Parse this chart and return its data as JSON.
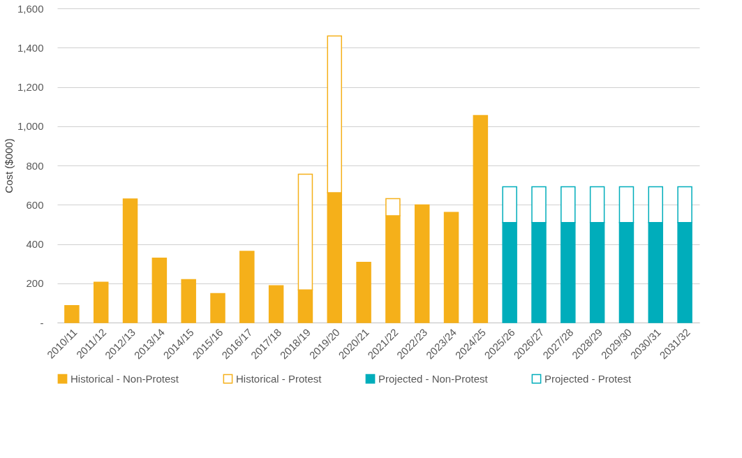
{
  "chart_data": {
    "type": "bar",
    "stacked": true,
    "ylabel": "Cost ($000)",
    "categories": [
      "2010/11",
      "2011/12",
      "2012/13",
      "2013/14",
      "2014/15",
      "2015/16",
      "2016/17",
      "2017/18",
      "2018/19",
      "2019/20",
      "2020/21",
      "2021/22",
      "2022/23",
      "2023/24",
      "2024/25",
      "2025/26",
      "2026/27",
      "2027/28",
      "2028/29",
      "2029/30",
      "2030/31",
      "2031/32"
    ],
    "series": [
      {
        "name": "Historical - Non-Protest",
        "color": "#f5b01a",
        "values": [
          86,
          205,
          629,
          328,
          219,
          148,
          363,
          188,
          166,
          661,
          307,
          544,
          599,
          561,
          1054,
          null,
          null,
          null,
          null,
          null,
          null,
          null
        ]
      },
      {
        "name": "Historical - Protest",
        "color": "#f5b01a",
        "values": [
          null,
          null,
          null,
          null,
          null,
          null,
          null,
          null,
          590,
          799,
          null,
          87,
          null,
          null,
          null,
          null,
          null,
          null,
          null,
          null,
          null,
          null
        ]
      },
      {
        "name": "Projected - Non-Protest",
        "color": "#00adbb",
        "values": [
          null,
          null,
          null,
          null,
          null,
          null,
          null,
          null,
          null,
          null,
          null,
          null,
          null,
          null,
          null,
          509,
          509,
          509,
          509,
          509,
          509,
          509
        ]
      },
      {
        "name": "Projected - Protest",
        "color": "#00adbb",
        "values": [
          null,
          null,
          null,
          null,
          null,
          null,
          null,
          null,
          null,
          null,
          null,
          null,
          null,
          null,
          null,
          183,
          183,
          183,
          183,
          183,
          183,
          183
        ]
      }
    ],
    "ylim": [
      0,
      1600
    ],
    "yticks": [
      {
        "value": 0,
        "label": "-"
      },
      200,
      400,
      600,
      800,
      {
        "value": 1000,
        "label": "1,000"
      },
      {
        "value": 1200,
        "label": "1,200"
      },
      {
        "value": 1400,
        "label": "1,400"
      },
      {
        "value": 1600,
        "label": "1,600"
      }
    ],
    "grid": "y",
    "legend": "bottom"
  }
}
